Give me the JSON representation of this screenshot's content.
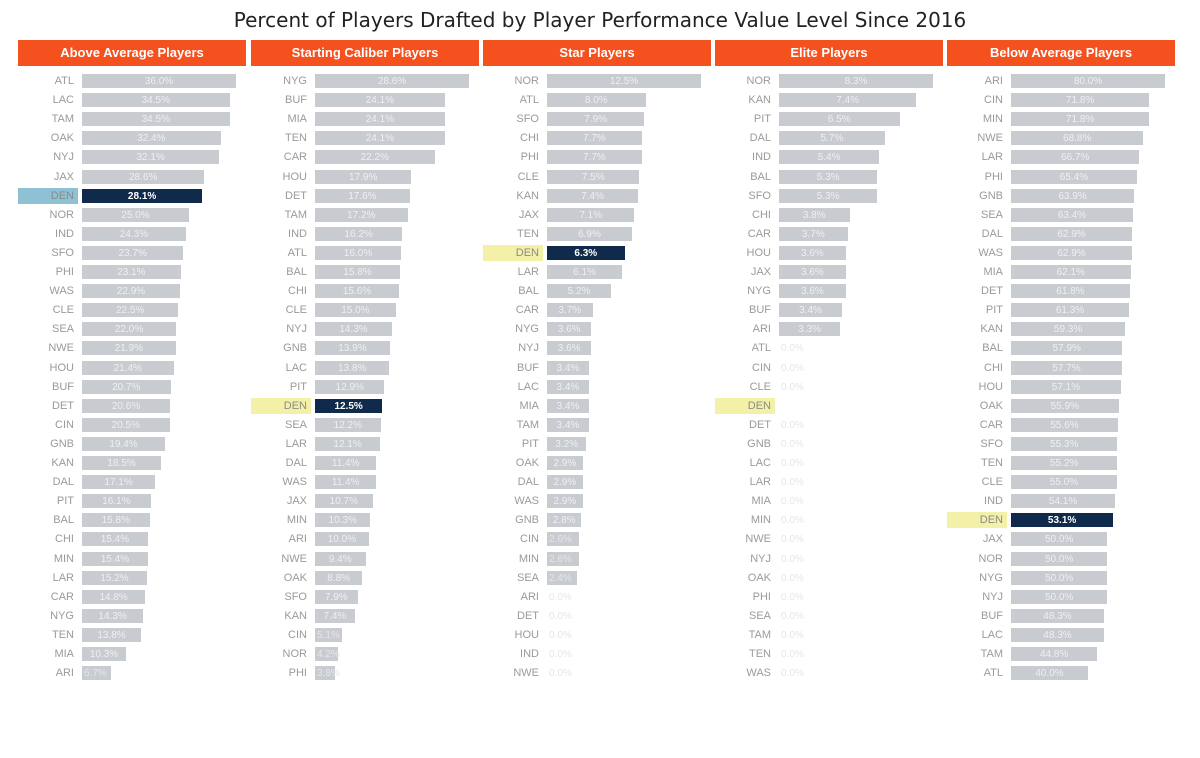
{
  "chart_data": {
    "title": "Percent of Players Drafted by Player Performance Value Level Since 2016",
    "type": "bar",
    "value_format": "percent",
    "highlight_team": "DEN",
    "colors": {
      "header": "#f4511e",
      "bar": "#c8cbd0",
      "bar_highlight": "#0f2a4a",
      "label_highlight_bg": "#f3f0a8",
      "label_highlight_bg_first": "#8fc1d4",
      "value_text": "#eef0f3",
      "value_text_highlight": "#ffffff"
    },
    "panels": [
      {
        "name": "Above Average Players",
        "xlim": [
          0,
          36
        ],
        "categories": [
          "ATL",
          "LAC",
          "TAM",
          "OAK",
          "NYJ",
          "JAX",
          "DEN",
          "NOR",
          "IND",
          "SFO",
          "PHI",
          "WAS",
          "CLE",
          "SEA",
          "NWE",
          "HOU",
          "BUF",
          "DET",
          "CIN",
          "GNB",
          "KAN",
          "DAL",
          "PIT",
          "BAL",
          "CHI",
          "MIN",
          "LAR",
          "CAR",
          "NYG",
          "TEN",
          "MIA",
          "ARI"
        ],
        "values": [
          36.0,
          34.5,
          34.5,
          32.4,
          32.1,
          28.6,
          28.1,
          25.0,
          24.3,
          23.7,
          23.1,
          22.9,
          22.5,
          22.0,
          21.9,
          21.4,
          20.7,
          20.6,
          20.5,
          19.4,
          18.5,
          17.1,
          16.1,
          15.8,
          15.4,
          15.4,
          15.2,
          14.8,
          14.3,
          13.8,
          10.3,
          6.7
        ],
        "labels": [
          "36.0%",
          "34.5%",
          "34.5%",
          "32.4%",
          "32.1%",
          "28.6%",
          "28.1%",
          "25.0%",
          "24.3%",
          "23.7%",
          "23.1%",
          "22.9%",
          "22.5%",
          "22.0%",
          "21.9%",
          "21.4%",
          "20.7%",
          "20.6%",
          "20.5%",
          "19.4%",
          "18.5%",
          "17.1%",
          "16.1%",
          "15.8%",
          "15.4%",
          "15.4%",
          "15.2%",
          "14.8%",
          "14.3%",
          "13.8%",
          "10.3%",
          "6.7%"
        ]
      },
      {
        "name": "Starting Caliber Players",
        "xlim": [
          0,
          28.6
        ],
        "categories": [
          "NYG",
          "BUF",
          "MIA",
          "TEN",
          "CAR",
          "HOU",
          "DET",
          "TAM",
          "IND",
          "ATL",
          "BAL",
          "CHI",
          "CLE",
          "NYJ",
          "GNB",
          "LAC",
          "PIT",
          "DEN",
          "SEA",
          "LAR",
          "DAL",
          "WAS",
          "JAX",
          "MIN",
          "ARI",
          "NWE",
          "OAK",
          "SFO",
          "KAN",
          "CIN",
          "NOR",
          "PHI"
        ],
        "values": [
          28.6,
          24.1,
          24.1,
          24.1,
          22.2,
          17.9,
          17.6,
          17.2,
          16.2,
          16.0,
          15.8,
          15.6,
          15.0,
          14.3,
          13.9,
          13.8,
          12.9,
          12.5,
          12.2,
          12.1,
          11.4,
          11.4,
          10.7,
          10.3,
          10.0,
          9.4,
          8.8,
          7.9,
          7.4,
          5.1,
          4.2,
          3.8
        ],
        "labels": [
          "28.6%",
          "24.1%",
          "24.1%",
          "24.1%",
          "22.2%",
          "17.9%",
          "17.6%",
          "17.2%",
          "16.2%",
          "16.0%",
          "15.8%",
          "15.6%",
          "15.0%",
          "14.3%",
          "13.9%",
          "13.8%",
          "12.9%",
          "12.5%",
          "12.2%",
          "12.1%",
          "11.4%",
          "11.4%",
          "10.7%",
          "10.3%",
          "10.0%",
          "9.4%",
          "8.8%",
          "7.9%",
          "7.4%",
          "5.1%",
          "4.2%",
          "3.8%"
        ]
      },
      {
        "name": "Star Players",
        "xlim": [
          0,
          12.5
        ],
        "categories": [
          "NOR",
          "ATL",
          "SFO",
          "CHI",
          "PHI",
          "CLE",
          "KAN",
          "JAX",
          "TEN",
          "DEN",
          "LAR",
          "BAL",
          "CAR",
          "NYG",
          "NYJ",
          "BUF",
          "LAC",
          "MIA",
          "TAM",
          "PIT",
          "OAK",
          "DAL",
          "WAS",
          "GNB",
          "CIN",
          "MIN",
          "SEA",
          "ARI",
          "DET",
          "HOU",
          "IND",
          "NWE"
        ],
        "values": [
          12.5,
          8.0,
          7.9,
          7.7,
          7.7,
          7.5,
          7.4,
          7.1,
          6.9,
          6.3,
          6.1,
          5.2,
          3.7,
          3.6,
          3.6,
          3.4,
          3.4,
          3.4,
          3.4,
          3.2,
          2.9,
          2.9,
          2.9,
          2.8,
          2.6,
          2.6,
          2.4,
          0.0,
          0.0,
          0.0,
          0.0,
          0.0
        ],
        "labels": [
          "12.5%",
          "8.0%",
          "7.9%",
          "7.7%",
          "7.7%",
          "7.5%",
          "7.4%",
          "7.1%",
          "6.9%",
          "6.3%",
          "6.1%",
          "5.2%",
          "3.7%",
          "3.6%",
          "3.6%",
          "3.4%",
          "3.4%",
          "3.4%",
          "3.4%",
          "3.2%",
          "2.9%",
          "2.9%",
          "2.9%",
          "2.8%",
          "2.6%",
          "2.6%",
          "2.4%",
          "0.0%",
          "0.0%",
          "0.0%",
          "0.0%",
          "0.0%"
        ]
      },
      {
        "name": "Elite Players",
        "xlim": [
          0,
          8.3
        ],
        "categories": [
          "NOR",
          "KAN",
          "PIT",
          "DAL",
          "IND",
          "BAL",
          "SFO",
          "CHI",
          "CAR",
          "HOU",
          "JAX",
          "NYG",
          "BUF",
          "ARI",
          "ATL",
          "CIN",
          "CLE",
          "DEN",
          "DET",
          "GNB",
          "LAC",
          "LAR",
          "MIA",
          "MIN",
          "NWE",
          "NYJ",
          "OAK",
          "PHI",
          "SEA",
          "TAM",
          "TEN",
          "WAS"
        ],
        "values": [
          8.3,
          7.4,
          6.5,
          5.7,
          5.4,
          5.3,
          5.3,
          3.8,
          3.7,
          3.6,
          3.6,
          3.6,
          3.4,
          3.3,
          0.0,
          0.0,
          0.0,
          0.0,
          0.0,
          0.0,
          0.0,
          0.0,
          0.0,
          0.0,
          0.0,
          0.0,
          0.0,
          0.0,
          0.0,
          0.0,
          0.0,
          0.0
        ],
        "labels": [
          "8.3%",
          "7.4%",
          "6.5%",
          "5.7%",
          "5.4%",
          "5.3%",
          "5.3%",
          "3.8%",
          "3.7%",
          "3.6%",
          "3.6%",
          "3.6%",
          "3.4%",
          "3.3%",
          "0.0%",
          "0.0%",
          "0.0%",
          "",
          "0.0%",
          "0.0%",
          "0.0%",
          "0.0%",
          "0.0%",
          "0.0%",
          "0.0%",
          "0.0%",
          "0.0%",
          "0.0%",
          "0.0%",
          "0.0%",
          "0.0%",
          "0.0%"
        ]
      },
      {
        "name": "Below Average Players",
        "xlim": [
          0,
          80.0
        ],
        "categories": [
          "ARI",
          "CIN",
          "MIN",
          "NWE",
          "LAR",
          "PHI",
          "GNB",
          "SEA",
          "DAL",
          "WAS",
          "MIA",
          "DET",
          "PIT",
          "KAN",
          "BAL",
          "CHI",
          "HOU",
          "OAK",
          "CAR",
          "SFO",
          "TEN",
          "CLE",
          "IND",
          "DEN",
          "JAX",
          "NOR",
          "NYG",
          "NYJ",
          "BUF",
          "LAC",
          "TAM",
          "ATL"
        ],
        "values": [
          80.0,
          71.8,
          71.8,
          68.8,
          66.7,
          65.4,
          63.9,
          63.4,
          62.9,
          62.9,
          62.1,
          61.8,
          61.3,
          59.3,
          57.9,
          57.7,
          57.1,
          55.9,
          55.6,
          55.3,
          55.2,
          55.0,
          54.1,
          53.1,
          50.0,
          50.0,
          50.0,
          50.0,
          48.3,
          48.3,
          44.8,
          40.0
        ],
        "labels": [
          "80.0%",
          "71.8%",
          "71.8%",
          "68.8%",
          "66.7%",
          "65.4%",
          "63.9%",
          "63.4%",
          "62.9%",
          "62.9%",
          "62.1%",
          "61.8%",
          "61.3%",
          "59.3%",
          "57.9%",
          "57.7%",
          "57.1%",
          "55.9%",
          "55.6%",
          "55.3%",
          "55.2%",
          "55.0%",
          "54.1%",
          "53.1%",
          "50.0%",
          "50.0%",
          "50.0%",
          "50.0%",
          "48.3%",
          "48.3%",
          "44.8%",
          "40.0%"
        ]
      }
    ]
  }
}
